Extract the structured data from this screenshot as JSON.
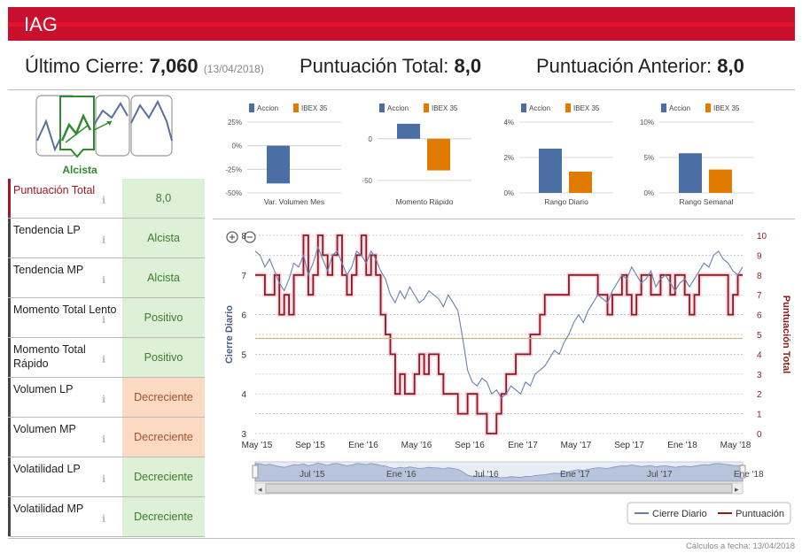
{
  "header": {
    "symbol": "IAG"
  },
  "summary": {
    "last_close_label": "Último Cierre:",
    "last_close_value": "7,060",
    "last_close_date": "(13/04/2018)",
    "total_score_label": "Puntuación Total:",
    "total_score_value": "8,0",
    "prev_score_label": "Puntuación Anterior:",
    "prev_score_value": "8,0"
  },
  "trend": {
    "label": "Alcista",
    "color": "#2e8b2e"
  },
  "scores": [
    {
      "label": "Puntuación Total",
      "value": "8,0",
      "status": "green"
    },
    {
      "label": "Tendencia LP",
      "value": "Alcista",
      "status": "green"
    },
    {
      "label": "Tendencia MP",
      "value": "Alcista",
      "status": "green"
    },
    {
      "label": "Momento Total Lento",
      "value": "Positivo",
      "status": "green"
    },
    {
      "label": "Momento Total Rápido",
      "value": "Positivo",
      "status": "green"
    },
    {
      "label": "Volumen LP",
      "value": "Decreciente",
      "status": "orange"
    },
    {
      "label": "Volumen MP",
      "value": "Decreciente",
      "status": "orange"
    },
    {
      "label": "Volatilidad LP",
      "value": "Decreciente",
      "status": "green"
    },
    {
      "label": "Volatilidad MP",
      "value": "Decreciente",
      "status": "green"
    }
  ],
  "colors": {
    "accion": "#4a6fa5",
    "ibex": "#e07b00",
    "price_line": "#6a7fb0",
    "score_line": "#8b1a1a",
    "brand": "#c8102e"
  },
  "chart_data": [
    {
      "type": "bar",
      "xlabel": "Var. Volumen Mes",
      "legend": [
        "Accion",
        "IBEX 35"
      ],
      "yticks": [
        "25%",
        "0%",
        "-25%",
        "-50%"
      ],
      "ylim": [
        -50,
        25
      ],
      "series": [
        {
          "name": "Accion",
          "values": [
            -40
          ]
        },
        {
          "name": "IBEX 35",
          "values": [
            null
          ]
        }
      ]
    },
    {
      "type": "bar",
      "xlabel": "Momento Rápido",
      "legend": [
        "Accion",
        "IBEX 35"
      ],
      "yticks": [
        "0",
        "-50"
      ],
      "ylim": [
        -65,
        20
      ],
      "series": [
        {
          "name": "Accion",
          "values": [
            18
          ]
        },
        {
          "name": "IBEX 35",
          "values": [
            -38
          ]
        }
      ]
    },
    {
      "type": "bar",
      "xlabel": "Rango Diario",
      "legend": [
        "Accion",
        "IBEX 35"
      ],
      "yticks": [
        "4%",
        "2%",
        "0%"
      ],
      "ylim": [
        0,
        4
      ],
      "series": [
        {
          "name": "Accion",
          "values": [
            2.5
          ]
        },
        {
          "name": "IBEX 35",
          "values": [
            1.2
          ]
        }
      ]
    },
    {
      "type": "bar",
      "xlabel": "Rango Semanal",
      "legend": [
        "Accion",
        "IBEX 35"
      ],
      "yticks": [
        "10%",
        "5%",
        "0%"
      ],
      "ylim": [
        0,
        10
      ],
      "series": [
        {
          "name": "Accion",
          "values": [
            5.6
          ]
        },
        {
          "name": "IBEX 35",
          "values": [
            3.3
          ]
        }
      ]
    },
    {
      "type": "line",
      "ylabel_left": "Cierre Diario",
      "ylabel_right": "Puntuación Total",
      "ylim_left": [
        3,
        8
      ],
      "ylim_right": [
        0,
        10
      ],
      "xticks": [
        "May '15",
        "Sep '15",
        "Ene '16",
        "May '16",
        "Sep '16",
        "Ene '17",
        "May '17",
        "Sep '17",
        "Ene '18",
        "May '18"
      ],
      "navigator_ticks": [
        "Jul '15",
        "Ene '16",
        "Jul '16",
        "Ene '17",
        "Jul '17",
        "Ene '18"
      ],
      "reference_line_score": 4.8,
      "legend": [
        "Cierre Diario",
        "Puntuación"
      ],
      "series": [
        {
          "name": "Cierre Diario",
          "axis": "left",
          "values": [
            7.6,
            7.5,
            7.2,
            7.4,
            7.1,
            6.8,
            6.6,
            6.9,
            7.3,
            7.2,
            7.5,
            7.0,
            7.3,
            7.7,
            7.4,
            7.1,
            7.5,
            7.6,
            7.3,
            7.0,
            7.2,
            7.6,
            7.5,
            7.3,
            7.6,
            7.4,
            7.1,
            6.9,
            6.5,
            6.3,
            6.6,
            6.4,
            6.7,
            6.5,
            6.3,
            6.4,
            6.6,
            6.5,
            6.4,
            6.2,
            6.5,
            6.3,
            6.1,
            5.4,
            4.6,
            4.3,
            4.2,
            4.4,
            4.3,
            4.0,
            4.1,
            3.9,
            4.0,
            4.2,
            4.1,
            4.0,
            4.3,
            4.2,
            4.5,
            4.6,
            4.7,
            4.9,
            5.1,
            5.0,
            5.3,
            5.5,
            5.8,
            6.0,
            5.8,
            6.1,
            6.3,
            6.5,
            6.4,
            6.3,
            6.6,
            6.8,
            7.0,
            6.9,
            7.2,
            7.0,
            6.8,
            6.9,
            7.1,
            6.7,
            6.9,
            7.0,
            6.8,
            6.6,
            6.8,
            6.9,
            6.7,
            6.9,
            7.1,
            7.3,
            7.2,
            7.5,
            7.6,
            7.4,
            7.3,
            7.1,
            7.0,
            7.2
          ]
        },
        {
          "name": "Puntuación",
          "axis": "right",
          "values": [
            8,
            8,
            7,
            7,
            8,
            6,
            7,
            6,
            8,
            8,
            10,
            7,
            8,
            10,
            9,
            8,
            9,
            10,
            8,
            7,
            8,
            9,
            10,
            8,
            9,
            8,
            6,
            5,
            4,
            2,
            3,
            2,
            2,
            3,
            4,
            3,
            4,
            4,
            3,
            2,
            2,
            2,
            1,
            1,
            2,
            2,
            1,
            1,
            0,
            0,
            1,
            2,
            3,
            3,
            4,
            4,
            4,
            5,
            5,
            6,
            7,
            7,
            7,
            7,
            7,
            8,
            8,
            8,
            8,
            8,
            8,
            7,
            7,
            6,
            7,
            7,
            8,
            7,
            6,
            7,
            8,
            8,
            7,
            7,
            8,
            8,
            7,
            8,
            8,
            7,
            6,
            7,
            8,
            8,
            8,
            8,
            8,
            8,
            6,
            7,
            8,
            8
          ]
        }
      ]
    }
  ],
  "footer": {
    "calc_date": "Cálculos a fecha: 13/04/2018"
  }
}
